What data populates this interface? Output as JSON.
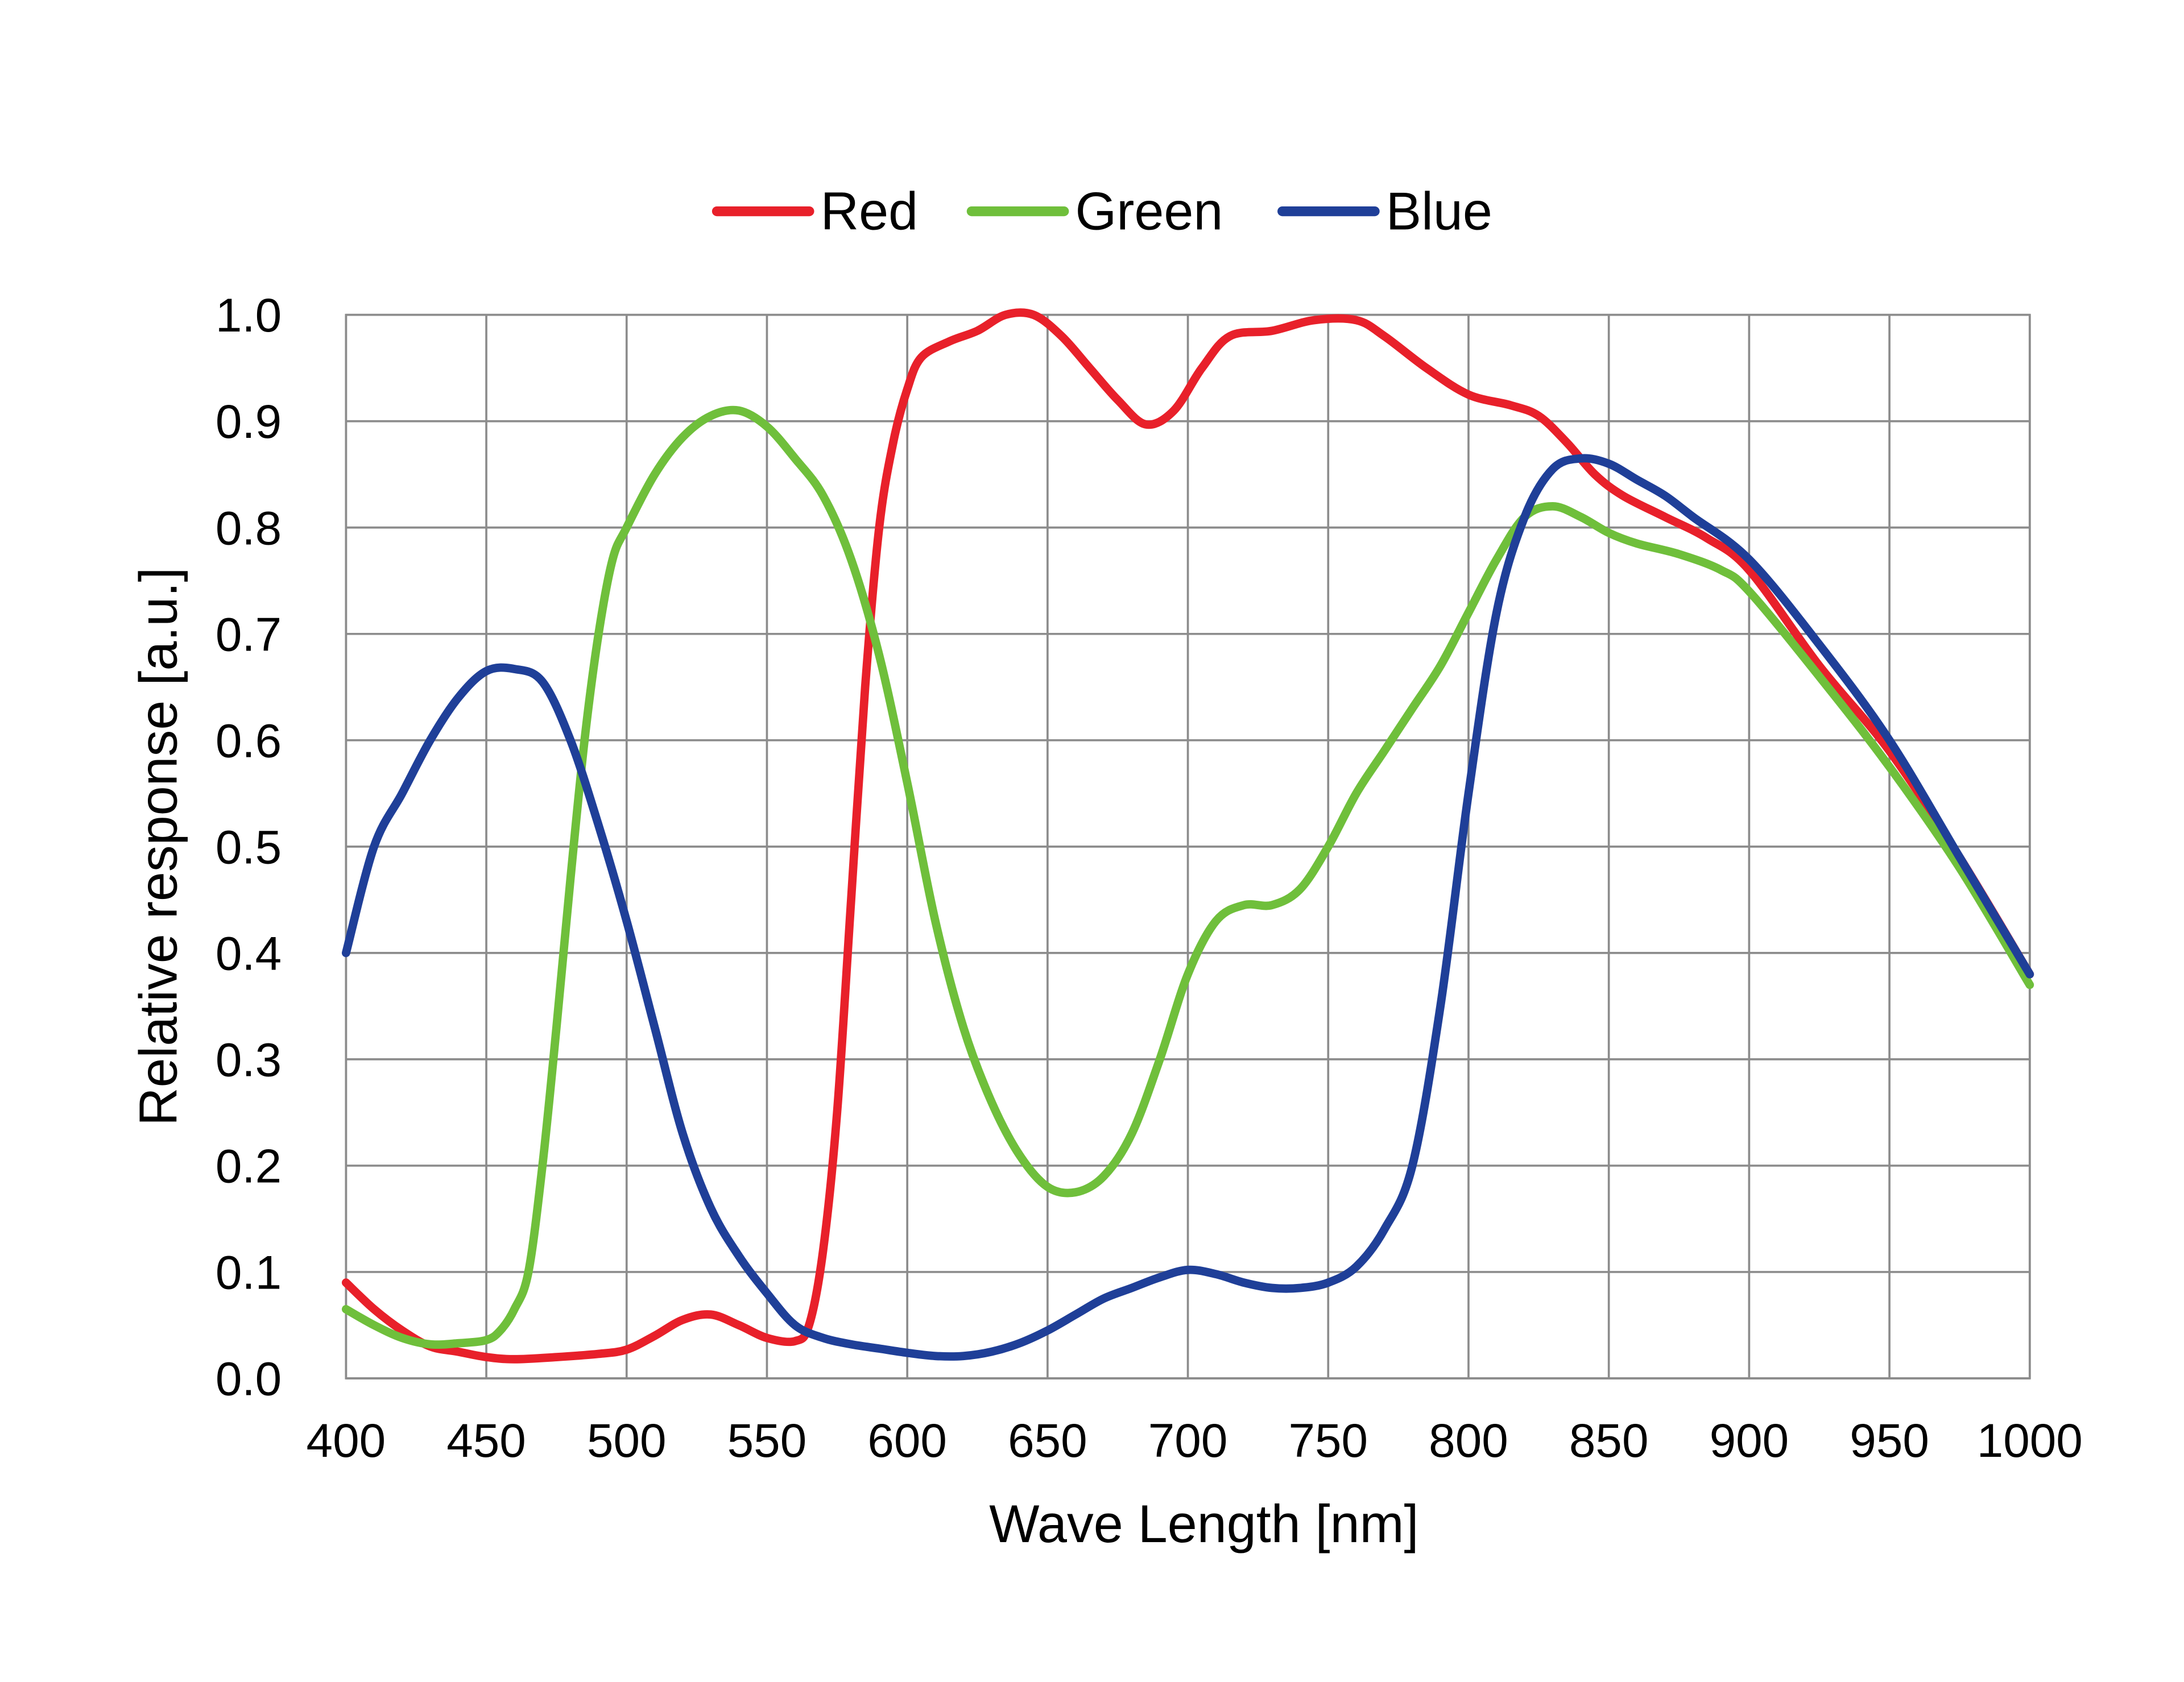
{
  "chart_data": {
    "type": "line",
    "title": "",
    "xlabel": "Wave Length [nm]",
    "ylabel": "Relative response [a.u.]",
    "xlim": [
      400,
      1000
    ],
    "ylim": [
      0.0,
      1.0
    ],
    "xticks": [
      400,
      450,
      500,
      550,
      600,
      650,
      700,
      750,
      800,
      850,
      900,
      950,
      1000
    ],
    "yticks": [
      "0.0",
      "0.1",
      "0.2",
      "0.3",
      "0.4",
      "0.5",
      "0.6",
      "0.7",
      "0.8",
      "0.9",
      "1.0"
    ],
    "grid": true,
    "legend_position": "top-center",
    "series": [
      {
        "name": "Red",
        "color": "#e8202a",
        "x": [
          400,
          410,
          420,
          430,
          440,
          450,
          460,
          475,
          490,
          500,
          510,
          520,
          530,
          540,
          550,
          560,
          565,
          570,
          575,
          580,
          585,
          590,
          595,
          600,
          605,
          615,
          625,
          635,
          645,
          655,
          665,
          675,
          685,
          695,
          705,
          715,
          730,
          745,
          760,
          770,
          785,
          800,
          815,
          825,
          835,
          845,
          855,
          870,
          885,
          900,
          925,
          950,
          975,
          1000
        ],
        "y": [
          0.09,
          0.065,
          0.045,
          0.03,
          0.025,
          0.02,
          0.018,
          0.02,
          0.023,
          0.027,
          0.04,
          0.055,
          0.06,
          0.05,
          0.038,
          0.035,
          0.05,
          0.12,
          0.25,
          0.45,
          0.65,
          0.8,
          0.88,
          0.93,
          0.96,
          0.975,
          0.985,
          1.0,
          1.0,
          0.98,
          0.95,
          0.92,
          0.897,
          0.91,
          0.95,
          0.98,
          0.985,
          0.995,
          0.995,
          0.98,
          0.95,
          0.925,
          0.915,
          0.905,
          0.88,
          0.85,
          0.83,
          0.81,
          0.79,
          0.76,
          0.67,
          0.59,
          0.49,
          0.38
        ]
      },
      {
        "name": "Green",
        "color": "#6fbf3b",
        "x": [
          400,
          410,
          420,
          430,
          440,
          450,
          455,
          460,
          465,
          470,
          475,
          480,
          485,
          490,
          495,
          500,
          510,
          520,
          530,
          540,
          550,
          560,
          570,
          580,
          590,
          600,
          610,
          620,
          630,
          640,
          650,
          660,
          670,
          680,
          690,
          700,
          710,
          720,
          730,
          740,
          750,
          760,
          770,
          780,
          790,
          800,
          810,
          820,
          830,
          840,
          850,
          860,
          875,
          890,
          900,
          925,
          950,
          975,
          1000
        ],
        "y": [
          0.065,
          0.05,
          0.038,
          0.032,
          0.033,
          0.036,
          0.045,
          0.065,
          0.1,
          0.2,
          0.33,
          0.47,
          0.6,
          0.7,
          0.77,
          0.8,
          0.85,
          0.885,
          0.905,
          0.91,
          0.895,
          0.865,
          0.83,
          0.77,
          0.68,
          0.56,
          0.43,
          0.33,
          0.26,
          0.21,
          0.18,
          0.175,
          0.19,
          0.23,
          0.3,
          0.38,
          0.43,
          0.445,
          0.445,
          0.46,
          0.5,
          0.55,
          0.59,
          0.63,
          0.67,
          0.72,
          0.77,
          0.81,
          0.82,
          0.81,
          0.795,
          0.785,
          0.775,
          0.76,
          0.74,
          0.66,
          0.575,
          0.48,
          0.37
        ]
      },
      {
        "name": "Blue",
        "color": "#1f3f98",
        "x": [
          400,
          410,
          420,
          430,
          440,
          450,
          460,
          470,
          480,
          490,
          500,
          510,
          520,
          530,
          540,
          550,
          560,
          570,
          580,
          590,
          600,
          610,
          620,
          630,
          640,
          650,
          660,
          670,
          680,
          690,
          700,
          710,
          720,
          730,
          740,
          750,
          760,
          770,
          780,
          790,
          800,
          810,
          820,
          830,
          840,
          850,
          860,
          870,
          880,
          900,
          925,
          950,
          975,
          1000
        ],
        "y": [
          0.4,
          0.5,
          0.55,
          0.6,
          0.64,
          0.665,
          0.667,
          0.655,
          0.6,
          0.52,
          0.43,
          0.33,
          0.23,
          0.16,
          0.115,
          0.08,
          0.05,
          0.038,
          0.032,
          0.028,
          0.024,
          0.021,
          0.021,
          0.025,
          0.033,
          0.045,
          0.06,
          0.075,
          0.085,
          0.095,
          0.102,
          0.098,
          0.09,
          0.085,
          0.085,
          0.09,
          0.105,
          0.14,
          0.2,
          0.35,
          0.55,
          0.72,
          0.81,
          0.855,
          0.865,
          0.86,
          0.845,
          0.83,
          0.81,
          0.77,
          0.69,
          0.6,
          0.49,
          0.38
        ]
      }
    ]
  }
}
